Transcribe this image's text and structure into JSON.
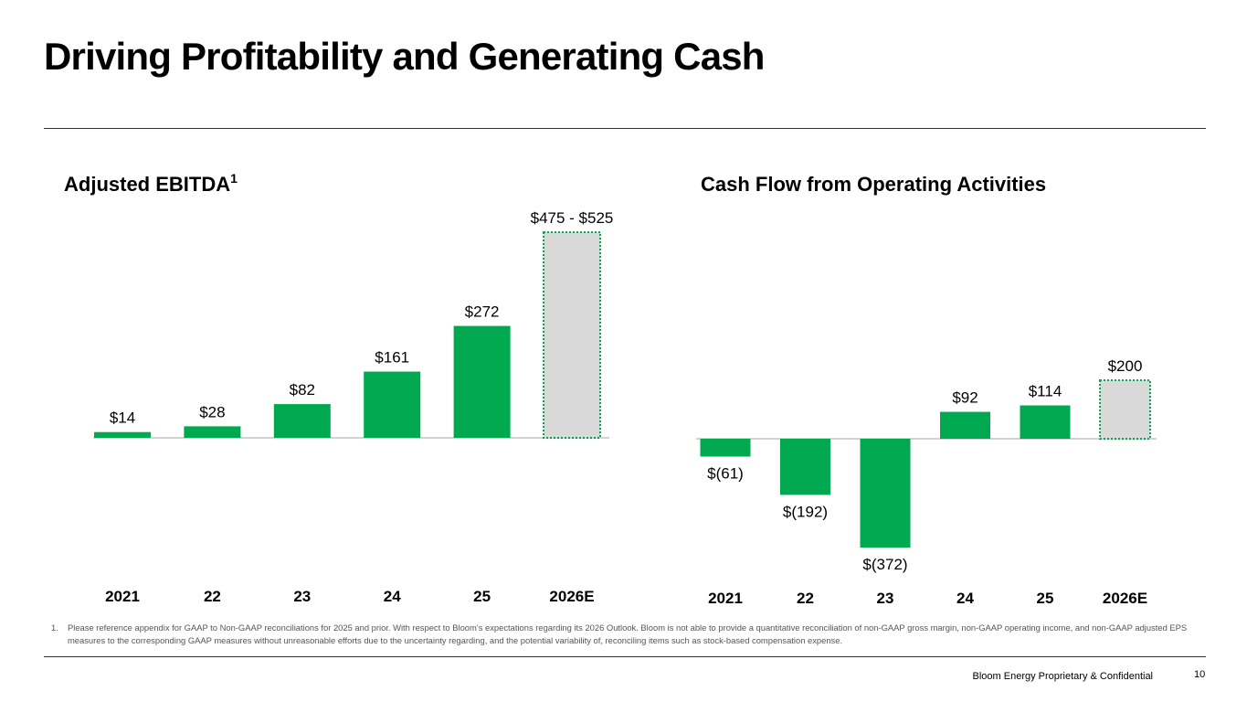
{
  "page": {
    "title": "Driving Profitability and Generating Cash",
    "footnote_number": "1.",
    "footnote_text": "Please reference appendix for GAAP to Non-GAAP reconciliations for 2025 and prior. With respect to Bloom’s expectations regarding its 2026 Outlook. Bloom is not able to provide a quantitative reconciliation of non-GAAP gross margin, non-GAAP operating income, and non-GAAP adjusted EPS measures to the corresponding GAAP measures without unreasonable efforts due to the uncertainty regarding, and the potential variability of, reconciling items such as stock-based compensation expense.",
    "footer_label": "Bloom Energy Proprietary & Confidential",
    "page_number": "10"
  },
  "colors": {
    "actual": "#00a94f",
    "estimate_fill": "#d9d9d9",
    "estimate_border": "#00a94f"
  },
  "chart_data": [
    {
      "id": "ebitda",
      "type": "bar",
      "title": "Adjusted EBITDA",
      "title_superscript": "1",
      "categories": [
        "2021",
        "22",
        "23",
        "24",
        "25",
        "2026E"
      ],
      "values": [
        14,
        28,
        82,
        161,
        272,
        500
      ],
      "labels": [
        "$14",
        "$28",
        "$82",
        "$161",
        "$272",
        "$475 - $525"
      ],
      "estimate_index": 5,
      "estimate_range": [
        475,
        525
      ],
      "ylim": [
        0,
        500
      ],
      "xlabel": "",
      "ylabel": ""
    },
    {
      "id": "cashflow",
      "type": "bar",
      "title": "Cash Flow from Operating Activities",
      "categories": [
        "2021",
        "22",
        "23",
        "24",
        "25",
        "2026E"
      ],
      "values": [
        -61,
        -192,
        -372,
        92,
        114,
        200
      ],
      "labels": [
        "$(61)",
        "$(192)",
        "$(372)",
        "$92",
        "$114",
        "$200"
      ],
      "estimate_index": 5,
      "ylim": [
        -372,
        200
      ],
      "xlabel": "",
      "ylabel": ""
    }
  ]
}
